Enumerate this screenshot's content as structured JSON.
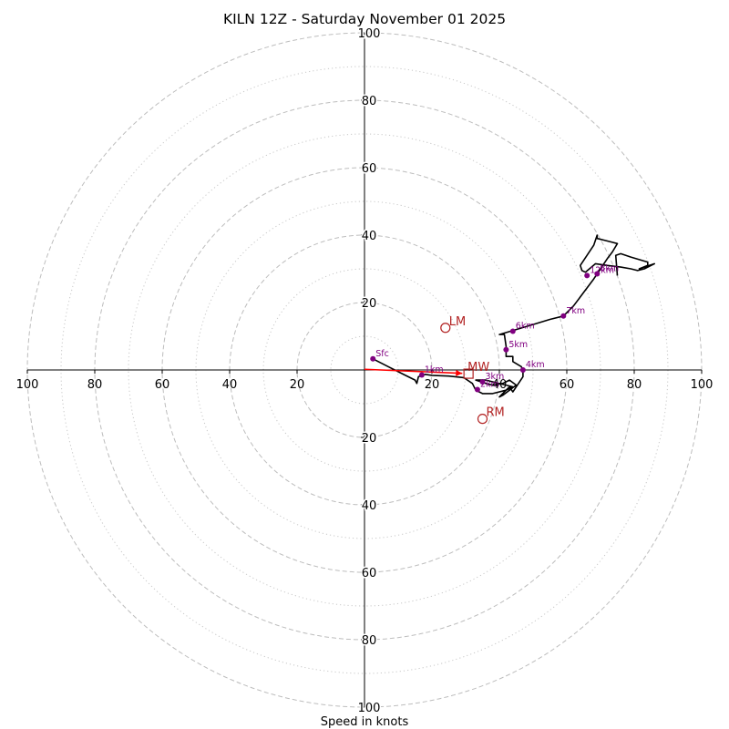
{
  "chart_data": {
    "type": "hodograph",
    "title": "KILN 12Z - Saturday November 01 2025",
    "xlabel": "Speed in knots",
    "range": [
      -100,
      100
    ],
    "dashed_rings": [
      20,
      40,
      60,
      80,
      100
    ],
    "dotted_rings": [
      10,
      30,
      50,
      70,
      90
    ],
    "x_tick_labels": [
      {
        "value": -100,
        "label": "100"
      },
      {
        "value": -80,
        "label": "80"
      },
      {
        "value": -60,
        "label": "60"
      },
      {
        "value": -40,
        "label": "40"
      },
      {
        "value": -20,
        "label": "20"
      },
      {
        "value": 20,
        "label": "20"
      },
      {
        "value": 40,
        "label": "40"
      },
      {
        "value": 60,
        "label": "60"
      },
      {
        "value": 80,
        "label": "80"
      },
      {
        "value": 100,
        "label": "100"
      }
    ],
    "y_tick_labels": [
      {
        "value": 100,
        "label": "100"
      },
      {
        "value": 80,
        "label": "80"
      },
      {
        "value": 60,
        "label": "60"
      },
      {
        "value": 40,
        "label": "40"
      },
      {
        "value": 20,
        "label": "20"
      },
      {
        "value": -20,
        "label": "20"
      },
      {
        "value": -40,
        "label": "40"
      },
      {
        "value": -60,
        "label": "60"
      },
      {
        "value": -80,
        "label": "80"
      },
      {
        "value": -100,
        "label": "100"
      }
    ],
    "trace_color": "#000000",
    "trace": [
      [
        2.5,
        3.3
      ],
      [
        7,
        1
      ],
      [
        12,
        -1.5
      ],
      [
        15,
        -3
      ],
      [
        15.5,
        -4
      ],
      [
        16,
        -2
      ],
      [
        18,
        -1.3
      ],
      [
        20,
        -1.6
      ],
      [
        25,
        -1.8
      ],
      [
        29.5,
        -2.3
      ],
      [
        32,
        -4
      ],
      [
        33,
        -6
      ],
      [
        35,
        -7
      ],
      [
        38,
        -7
      ],
      [
        42,
        -6
      ],
      [
        44,
        -5
      ],
      [
        36,
        -3
      ],
      [
        33,
        -3
      ],
      [
        36,
        -4
      ],
      [
        38,
        -4.5
      ],
      [
        41,
        -4
      ],
      [
        43,
        -3
      ],
      [
        45,
        -4.5
      ],
      [
        41,
        -7.5
      ],
      [
        40,
        -8
      ],
      [
        43,
        -5
      ],
      [
        44,
        -6.5
      ],
      [
        47,
        -2
      ],
      [
        47,
        0
      ],
      [
        46.5,
        1
      ],
      [
        44,
        2.5
      ],
      [
        44,
        4
      ],
      [
        42,
        4
      ],
      [
        42,
        5.5
      ],
      [
        42,
        7
      ],
      [
        41.5,
        10.5
      ],
      [
        40,
        10.5
      ],
      [
        45,
        12
      ],
      [
        50,
        13.5
      ],
      [
        55,
        15
      ],
      [
        59,
        16
      ],
      [
        62,
        19
      ],
      [
        65,
        23
      ],
      [
        68,
        27
      ],
      [
        70,
        30
      ],
      [
        72,
        33
      ],
      [
        73.5,
        35
      ],
      [
        75,
        37.5
      ],
      [
        73,
        38
      ],
      [
        71,
        38.5
      ],
      [
        69,
        39
      ],
      [
        69,
        40
      ],
      [
        68,
        37
      ],
      [
        66,
        34
      ],
      [
        64,
        31
      ],
      [
        64.5,
        29.5
      ],
      [
        65.5,
        29
      ],
      [
        68.5,
        31.5
      ],
      [
        72,
        31
      ],
      [
        76,
        30.5
      ],
      [
        79,
        30
      ],
      [
        81,
        29.5
      ],
      [
        83,
        30
      ],
      [
        86,
        31.5
      ],
      [
        81.5,
        30
      ],
      [
        84,
        31
      ],
      [
        84,
        32
      ],
      [
        79,
        33.5
      ],
      [
        76,
        34.5
      ],
      [
        74.5,
        34
      ],
      [
        75,
        28
      ]
    ],
    "height_markers": [
      {
        "label": "Sfc",
        "u": 2.5,
        "v": 3.3
      },
      {
        "label": "1km",
        "u": 17,
        "v": -1.5
      },
      {
        "label": "2km",
        "u": 33.5,
        "v": -5.8
      },
      {
        "label": "3km",
        "u": 35,
        "v": -3.5
      },
      {
        "label": "4km",
        "u": 47,
        "v": 0
      },
      {
        "label": "5km",
        "u": 42,
        "v": 6
      },
      {
        "label": "6km",
        "u": 44,
        "v": 11.5
      },
      {
        "label": "7km",
        "u": 59,
        "v": 16
      },
      {
        "label": "12km",
        "u": 66,
        "v": 28
      },
      {
        "label": "8km",
        "u": 69,
        "v": 28.5
      }
    ],
    "marker_color": "#800080",
    "storm_motion": {
      "color": "#b22222",
      "arrow_color": "#ff0000",
      "arrow_from": {
        "u": 0,
        "v": 0.2
      },
      "arrow_to": {
        "u": 29,
        "v": -1
      },
      "mean_wind": {
        "label": "MW",
        "u": 29.5,
        "v": -1.1
      },
      "left_mover": {
        "label": "LM",
        "u": 24,
        "v": 12.5
      },
      "right_mover": {
        "label": "RM",
        "u": 35,
        "v": -14.5
      }
    }
  }
}
